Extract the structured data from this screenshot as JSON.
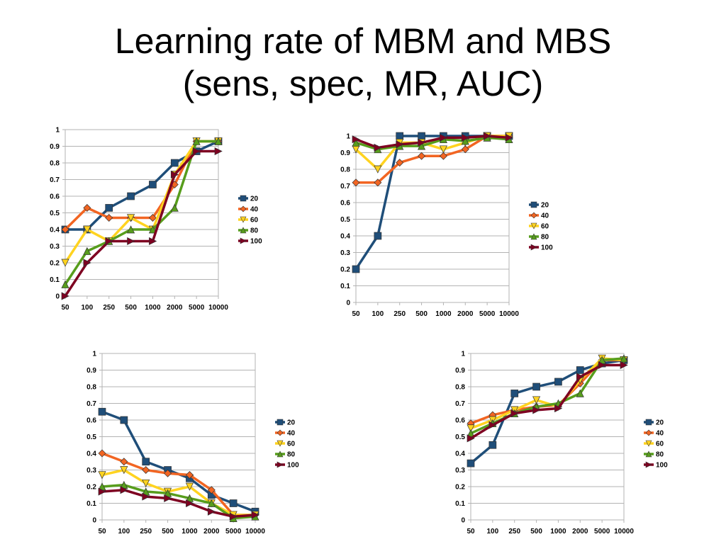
{
  "slide": {
    "title_line1": "Learning rate of MBM and MBS",
    "title_line2": "(sens, spec, MR, AUC)"
  },
  "colors": {
    "20": "#1f4e79",
    "40": "#f26522",
    "60": "#ffd320",
    "80": "#579d1c",
    "100": "#7e0021"
  },
  "chart_data": [
    {
      "type": "line",
      "categories": [
        "50",
        "100",
        "250",
        "500",
        "1000",
        "2000",
        "5000",
        "10000"
      ],
      "ylim": [
        0,
        1
      ],
      "yticks": [
        "0",
        "0.1",
        "0.2",
        "0.3",
        "0.4",
        "0.5",
        "0.6",
        "0.7",
        "0.8",
        "0.9",
        "1"
      ],
      "grid": true,
      "legend_position": "right",
      "series": [
        {
          "name": "20",
          "marker": "square",
          "color": "#1f4e79",
          "values": [
            0.4,
            0.4,
            0.53,
            0.6,
            0.67,
            0.8,
            0.87,
            0.93
          ]
        },
        {
          "name": "40",
          "marker": "diamond",
          "color": "#f26522",
          "values": [
            0.4,
            0.53,
            0.47,
            0.47,
            0.47,
            0.67,
            0.93,
            0.93
          ]
        },
        {
          "name": "60",
          "marker": "triangle-down",
          "color": "#ffd320",
          "values": [
            0.2,
            0.4,
            0.33,
            0.47,
            0.4,
            0.73,
            0.93,
            0.93
          ]
        },
        {
          "name": "80",
          "marker": "triangle-up",
          "color": "#579d1c",
          "values": [
            0.07,
            0.27,
            0.33,
            0.4,
            0.4,
            0.53,
            0.93,
            0.93
          ]
        },
        {
          "name": "100",
          "marker": "triangle-right",
          "color": "#7e0021",
          "values": [
            0.0,
            0.2,
            0.33,
            0.33,
            0.33,
            0.73,
            0.87,
            0.87
          ]
        }
      ]
    },
    {
      "type": "line",
      "categories": [
        "50",
        "100",
        "250",
        "500",
        "1000",
        "2000",
        "5000",
        "10000"
      ],
      "ylim": [
        0,
        1
      ],
      "yticks": [
        "0",
        "0.1",
        "0.2",
        "0.3",
        "0.4",
        "0.5",
        "0.6",
        "0.7",
        "0.8",
        "0.9",
        "1"
      ],
      "grid": true,
      "legend_position": "right",
      "series": [
        {
          "name": "20",
          "marker": "square",
          "color": "#1f4e79",
          "values": [
            0.2,
            0.4,
            1.0,
            1.0,
            1.0,
            1.0,
            1.0,
            1.0
          ]
        },
        {
          "name": "40",
          "marker": "diamond",
          "color": "#f26522",
          "values": [
            0.72,
            0.72,
            0.84,
            0.88,
            0.88,
            0.92,
            1.0,
            1.0
          ]
        },
        {
          "name": "60",
          "marker": "triangle-down",
          "color": "#ffd320",
          "values": [
            0.92,
            0.8,
            0.96,
            0.96,
            0.92,
            0.96,
            1.0,
            1.0
          ]
        },
        {
          "name": "80",
          "marker": "triangle-up",
          "color": "#579d1c",
          "values": [
            0.96,
            0.92,
            0.94,
            0.94,
            0.98,
            0.97,
            0.99,
            0.98
          ]
        },
        {
          "name": "100",
          "marker": "triangle-right",
          "color": "#7e0021",
          "values": [
            0.98,
            0.93,
            0.95,
            0.96,
            0.99,
            0.99,
            1.0,
            0.99
          ]
        }
      ]
    },
    {
      "type": "line",
      "categories": [
        "50",
        "100",
        "250",
        "500",
        "1000",
        "2000",
        "5000",
        "10000"
      ],
      "ylim": [
        0,
        1
      ],
      "yticks": [
        "0",
        "0.1",
        "0.2",
        "0.3",
        "0.4",
        "0.5",
        "0.6",
        "0.7",
        "0.8",
        "0.9",
        "1"
      ],
      "grid": true,
      "legend_position": "right",
      "series": [
        {
          "name": "20",
          "marker": "square",
          "color": "#1f4e79",
          "values": [
            0.65,
            0.6,
            0.35,
            0.3,
            0.25,
            0.15,
            0.1,
            0.05
          ]
        },
        {
          "name": "40",
          "marker": "diamond",
          "color": "#f26522",
          "values": [
            0.4,
            0.35,
            0.3,
            0.28,
            0.27,
            0.18,
            0.03,
            0.03
          ]
        },
        {
          "name": "60",
          "marker": "triangle-down",
          "color": "#ffd320",
          "values": [
            0.27,
            0.3,
            0.22,
            0.17,
            0.2,
            0.1,
            0.03,
            0.03
          ]
        },
        {
          "name": "80",
          "marker": "triangle-up",
          "color": "#579d1c",
          "values": [
            0.2,
            0.21,
            0.17,
            0.16,
            0.13,
            0.1,
            0.01,
            0.02
          ]
        },
        {
          "name": "100",
          "marker": "triangle-right",
          "color": "#7e0021",
          "values": [
            0.17,
            0.18,
            0.14,
            0.13,
            0.1,
            0.05,
            0.02,
            0.03
          ]
        }
      ]
    },
    {
      "type": "line",
      "categories": [
        "50",
        "100",
        "250",
        "500",
        "1000",
        "2000",
        "5000",
        "10000"
      ],
      "ylim": [
        0,
        1
      ],
      "yticks": [
        "0",
        "0.1",
        "0.2",
        "0.3",
        "0.4",
        "0.5",
        "0.6",
        "0.7",
        "0.8",
        "0.9",
        "1"
      ],
      "grid": true,
      "legend_position": "right",
      "series": [
        {
          "name": "20",
          "marker": "square",
          "color": "#1f4e79",
          "values": [
            0.34,
            0.45,
            0.76,
            0.8,
            0.83,
            0.9,
            0.94,
            0.96
          ]
        },
        {
          "name": "40",
          "marker": "diamond",
          "color": "#f26522",
          "values": [
            0.58,
            0.63,
            0.66,
            0.68,
            0.69,
            0.82,
            0.96,
            0.96
          ]
        },
        {
          "name": "60",
          "marker": "triangle-down",
          "color": "#ffd320",
          "values": [
            0.55,
            0.6,
            0.66,
            0.72,
            0.68,
            0.84,
            0.97,
            0.96
          ]
        },
        {
          "name": "80",
          "marker": "triangle-up",
          "color": "#579d1c",
          "values": [
            0.52,
            0.58,
            0.64,
            0.68,
            0.7,
            0.76,
            0.96,
            0.97
          ]
        },
        {
          "name": "100",
          "marker": "triangle-right",
          "color": "#7e0021",
          "values": [
            0.49,
            0.57,
            0.64,
            0.66,
            0.67,
            0.86,
            0.93,
            0.93
          ]
        }
      ]
    }
  ]
}
